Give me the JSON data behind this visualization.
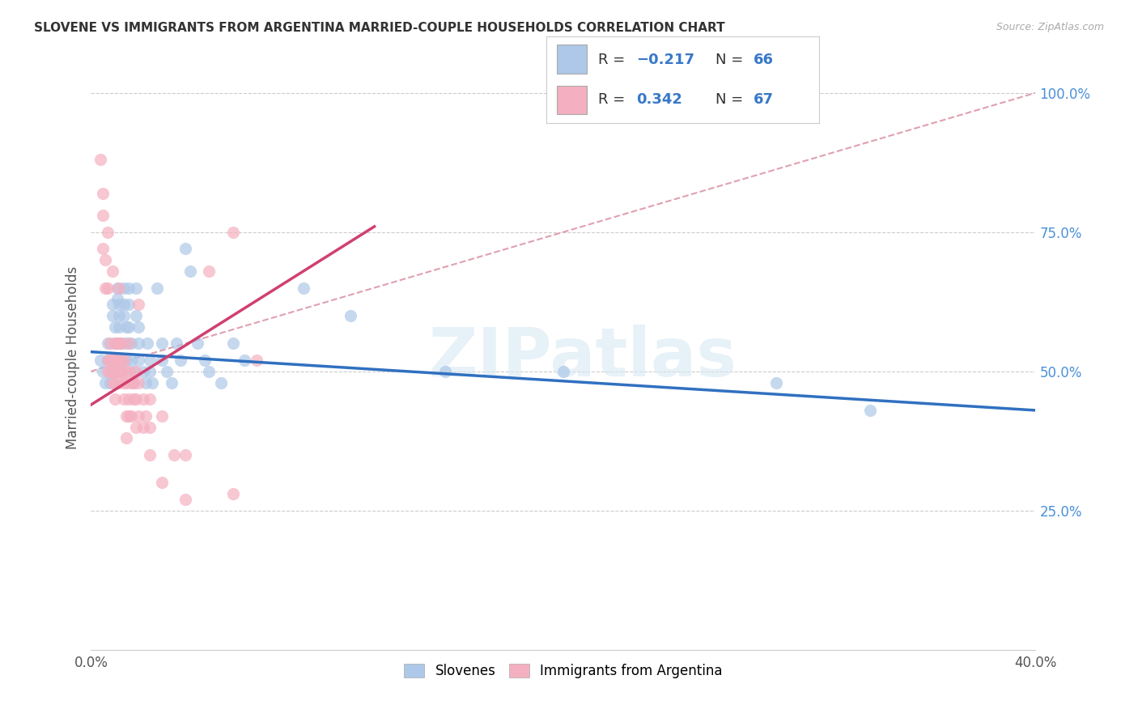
{
  "title": "SLOVENE VS IMMIGRANTS FROM ARGENTINA MARRIED-COUPLE HOUSEHOLDS CORRELATION CHART",
  "source": "Source: ZipAtlas.com",
  "ylabel": "Married-couple Households",
  "x_min": 0.0,
  "x_max": 0.4,
  "y_min": 0.0,
  "y_max": 1.05,
  "blue_color": "#adc8e8",
  "pink_color": "#f4b0c0",
  "blue_line_color": "#3070c0",
  "pink_line_color": "#d04070",
  "diagonal_color": "#e0a0b0",
  "watermark": "ZIPatlas",
  "blue_scatter": [
    [
      0.004,
      0.52
    ],
    [
      0.005,
      0.5
    ],
    [
      0.006,
      0.48
    ],
    [
      0.007,
      0.55
    ],
    [
      0.007,
      0.52
    ],
    [
      0.008,
      0.5
    ],
    [
      0.008,
      0.48
    ],
    [
      0.009,
      0.62
    ],
    [
      0.009,
      0.6
    ],
    [
      0.01,
      0.58
    ],
    [
      0.01,
      0.55
    ],
    [
      0.01,
      0.52
    ],
    [
      0.01,
      0.5
    ],
    [
      0.011,
      0.65
    ],
    [
      0.011,
      0.63
    ],
    [
      0.012,
      0.62
    ],
    [
      0.012,
      0.6
    ],
    [
      0.012,
      0.58
    ],
    [
      0.013,
      0.55
    ],
    [
      0.013,
      0.52
    ],
    [
      0.013,
      0.5
    ],
    [
      0.014,
      0.65
    ],
    [
      0.014,
      0.62
    ],
    [
      0.014,
      0.6
    ],
    [
      0.015,
      0.58
    ],
    [
      0.015,
      0.55
    ],
    [
      0.015,
      0.52
    ],
    [
      0.016,
      0.65
    ],
    [
      0.016,
      0.62
    ],
    [
      0.016,
      0.58
    ],
    [
      0.017,
      0.55
    ],
    [
      0.017,
      0.52
    ],
    [
      0.018,
      0.5
    ],
    [
      0.018,
      0.48
    ],
    [
      0.019,
      0.65
    ],
    [
      0.019,
      0.6
    ],
    [
      0.02,
      0.58
    ],
    [
      0.02,
      0.55
    ],
    [
      0.02,
      0.52
    ],
    [
      0.022,
      0.5
    ],
    [
      0.023,
      0.48
    ],
    [
      0.024,
      0.55
    ],
    [
      0.025,
      0.52
    ],
    [
      0.025,
      0.5
    ],
    [
      0.026,
      0.48
    ],
    [
      0.028,
      0.65
    ],
    [
      0.03,
      0.55
    ],
    [
      0.03,
      0.52
    ],
    [
      0.032,
      0.5
    ],
    [
      0.034,
      0.48
    ],
    [
      0.036,
      0.55
    ],
    [
      0.038,
      0.52
    ],
    [
      0.04,
      0.72
    ],
    [
      0.042,
      0.68
    ],
    [
      0.045,
      0.55
    ],
    [
      0.048,
      0.52
    ],
    [
      0.05,
      0.5
    ],
    [
      0.055,
      0.48
    ],
    [
      0.06,
      0.55
    ],
    [
      0.065,
      0.52
    ],
    [
      0.09,
      0.65
    ],
    [
      0.11,
      0.6
    ],
    [
      0.15,
      0.5
    ],
    [
      0.2,
      0.5
    ],
    [
      0.29,
      0.48
    ],
    [
      0.33,
      0.43
    ]
  ],
  "pink_scatter": [
    [
      0.004,
      0.88
    ],
    [
      0.005,
      0.82
    ],
    [
      0.005,
      0.78
    ],
    [
      0.005,
      0.72
    ],
    [
      0.006,
      0.7
    ],
    [
      0.006,
      0.65
    ],
    [
      0.007,
      0.75
    ],
    [
      0.007,
      0.65
    ],
    [
      0.007,
      0.52
    ],
    [
      0.007,
      0.5
    ],
    [
      0.008,
      0.55
    ],
    [
      0.008,
      0.52
    ],
    [
      0.008,
      0.5
    ],
    [
      0.009,
      0.68
    ],
    [
      0.009,
      0.52
    ],
    [
      0.009,
      0.5
    ],
    [
      0.009,
      0.48
    ],
    [
      0.01,
      0.55
    ],
    [
      0.01,
      0.52
    ],
    [
      0.01,
      0.5
    ],
    [
      0.01,
      0.48
    ],
    [
      0.01,
      0.45
    ],
    [
      0.011,
      0.55
    ],
    [
      0.011,
      0.52
    ],
    [
      0.012,
      0.65
    ],
    [
      0.012,
      0.55
    ],
    [
      0.012,
      0.5
    ],
    [
      0.012,
      0.48
    ],
    [
      0.013,
      0.55
    ],
    [
      0.013,
      0.52
    ],
    [
      0.013,
      0.5
    ],
    [
      0.014,
      0.52
    ],
    [
      0.014,
      0.48
    ],
    [
      0.014,
      0.45
    ],
    [
      0.015,
      0.5
    ],
    [
      0.015,
      0.48
    ],
    [
      0.015,
      0.42
    ],
    [
      0.015,
      0.38
    ],
    [
      0.016,
      0.55
    ],
    [
      0.016,
      0.5
    ],
    [
      0.016,
      0.45
    ],
    [
      0.016,
      0.42
    ],
    [
      0.017,
      0.48
    ],
    [
      0.017,
      0.42
    ],
    [
      0.018,
      0.48
    ],
    [
      0.018,
      0.45
    ],
    [
      0.019,
      0.5
    ],
    [
      0.019,
      0.45
    ],
    [
      0.019,
      0.4
    ],
    [
      0.02,
      0.62
    ],
    [
      0.02,
      0.48
    ],
    [
      0.02,
      0.42
    ],
    [
      0.022,
      0.45
    ],
    [
      0.022,
      0.4
    ],
    [
      0.023,
      0.42
    ],
    [
      0.025,
      0.45
    ],
    [
      0.025,
      0.4
    ],
    [
      0.025,
      0.35
    ],
    [
      0.03,
      0.42
    ],
    [
      0.03,
      0.3
    ],
    [
      0.035,
      0.35
    ],
    [
      0.04,
      0.35
    ],
    [
      0.04,
      0.27
    ],
    [
      0.05,
      0.68
    ],
    [
      0.06,
      0.75
    ],
    [
      0.06,
      0.28
    ],
    [
      0.07,
      0.52
    ]
  ],
  "blue_line": [
    [
      0.0,
      0.535
    ],
    [
      0.4,
      0.43
    ]
  ],
  "pink_line": [
    [
      0.0,
      0.44
    ],
    [
      0.12,
      0.76
    ]
  ],
  "diag_line": [
    [
      0.0,
      0.5
    ],
    [
      0.4,
      1.0
    ]
  ]
}
